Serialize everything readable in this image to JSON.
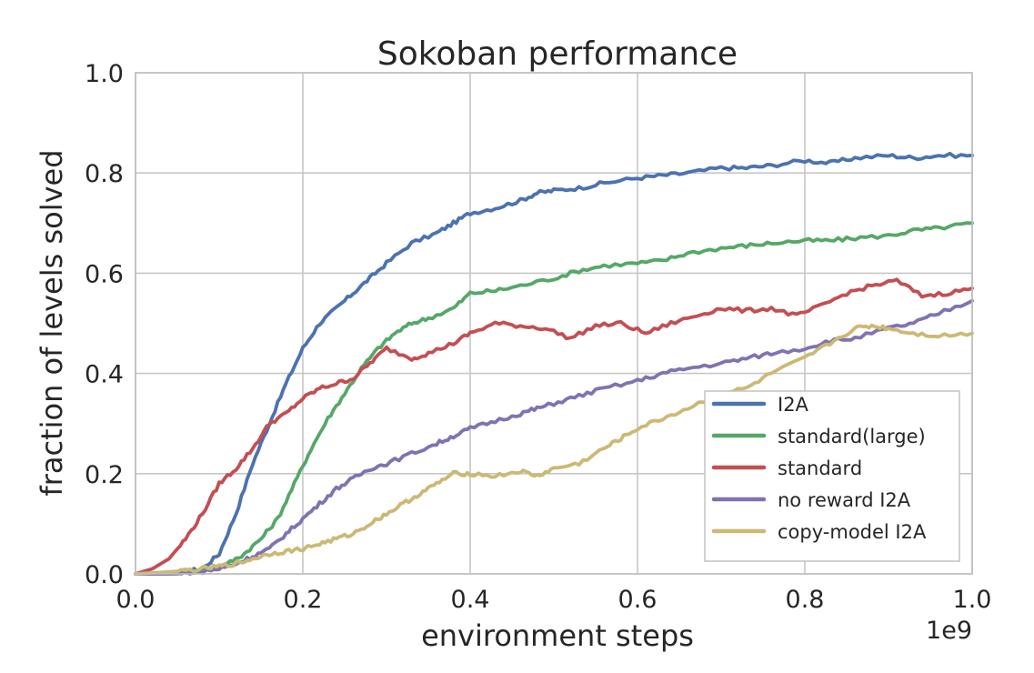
{
  "chart_data": {
    "type": "line",
    "title": "Sokoban performance",
    "xlabel": "environment steps",
    "ylabel": "fraction of levels solved",
    "x_offset_label": "1e9",
    "xlim": [
      0.0,
      1.0
    ],
    "ylim": [
      0.0,
      1.0
    ],
    "xticks": [
      "0.0",
      "0.2",
      "0.4",
      "0.6",
      "0.8",
      "1.0"
    ],
    "yticks": [
      "0.0",
      "0.2",
      "0.4",
      "0.6",
      "0.8",
      "1.0"
    ],
    "grid": true,
    "legend_position": "lower-right",
    "series": [
      {
        "name": "I2A",
        "color": "#4c72b0",
        "x": [
          0.0,
          0.03,
          0.06,
          0.08,
          0.1,
          0.12,
          0.14,
          0.16,
          0.18,
          0.2,
          0.22,
          0.24,
          0.26,
          0.28,
          0.3,
          0.33,
          0.36,
          0.38,
          0.4,
          0.43,
          0.46,
          0.48,
          0.5,
          0.53,
          0.56,
          0.6,
          0.63,
          0.66,
          0.7,
          0.73,
          0.76,
          0.8,
          0.83,
          0.86,
          0.9,
          0.93,
          0.96,
          1.0
        ],
        "y": [
          0.0,
          0.0,
          0.005,
          0.01,
          0.04,
          0.12,
          0.22,
          0.3,
          0.38,
          0.45,
          0.5,
          0.53,
          0.56,
          0.59,
          0.62,
          0.66,
          0.68,
          0.7,
          0.72,
          0.73,
          0.745,
          0.76,
          0.765,
          0.77,
          0.78,
          0.79,
          0.795,
          0.8,
          0.81,
          0.81,
          0.815,
          0.825,
          0.82,
          0.83,
          0.835,
          0.83,
          0.835,
          0.835
        ]
      },
      {
        "name": "standard(large)",
        "color": "#55a868",
        "x": [
          0.0,
          0.04,
          0.07,
          0.09,
          0.11,
          0.13,
          0.15,
          0.17,
          0.19,
          0.21,
          0.23,
          0.25,
          0.27,
          0.29,
          0.31,
          0.33,
          0.35,
          0.38,
          0.4,
          0.43,
          0.46,
          0.5,
          0.53,
          0.56,
          0.6,
          0.63,
          0.66,
          0.7,
          0.73,
          0.76,
          0.8,
          0.83,
          0.86,
          0.9,
          0.93,
          0.96,
          1.0
        ],
        "y": [
          0.0,
          0.0,
          0.005,
          0.01,
          0.02,
          0.04,
          0.07,
          0.11,
          0.18,
          0.25,
          0.31,
          0.36,
          0.41,
          0.45,
          0.48,
          0.5,
          0.51,
          0.53,
          0.56,
          0.565,
          0.575,
          0.59,
          0.605,
          0.615,
          0.62,
          0.625,
          0.64,
          0.65,
          0.655,
          0.66,
          0.665,
          0.665,
          0.67,
          0.675,
          0.685,
          0.69,
          0.7
        ]
      },
      {
        "name": "standard",
        "color": "#c44e52",
        "x": [
          0.0,
          0.02,
          0.04,
          0.06,
          0.08,
          0.1,
          0.12,
          0.14,
          0.16,
          0.18,
          0.2,
          0.22,
          0.24,
          0.26,
          0.28,
          0.3,
          0.33,
          0.35,
          0.38,
          0.4,
          0.43,
          0.46,
          0.49,
          0.52,
          0.55,
          0.58,
          0.61,
          0.64,
          0.67,
          0.7,
          0.73,
          0.76,
          0.79,
          0.82,
          0.85,
          0.88,
          0.91,
          0.94,
          0.97,
          1.0
        ],
        "y": [
          0.0,
          0.01,
          0.03,
          0.07,
          0.12,
          0.18,
          0.21,
          0.25,
          0.3,
          0.32,
          0.35,
          0.37,
          0.38,
          0.39,
          0.42,
          0.45,
          0.43,
          0.44,
          0.46,
          0.48,
          0.5,
          0.495,
          0.49,
          0.47,
          0.495,
          0.5,
          0.48,
          0.5,
          0.515,
          0.53,
          0.525,
          0.53,
          0.515,
          0.535,
          0.56,
          0.575,
          0.585,
          0.555,
          0.56,
          0.57
        ]
      },
      {
        "name": "no reward I2A",
        "color": "#8172b2",
        "x": [
          0.0,
          0.05,
          0.08,
          0.1,
          0.12,
          0.14,
          0.16,
          0.18,
          0.2,
          0.22,
          0.24,
          0.26,
          0.28,
          0.3,
          0.33,
          0.36,
          0.38,
          0.4,
          0.43,
          0.46,
          0.48,
          0.5,
          0.53,
          0.56,
          0.6,
          0.63,
          0.66,
          0.7,
          0.73,
          0.76,
          0.8,
          0.83,
          0.86,
          0.9,
          0.93,
          0.96,
          1.0
        ],
        "y": [
          0.0,
          0.0,
          0.005,
          0.01,
          0.02,
          0.035,
          0.05,
          0.08,
          0.11,
          0.14,
          0.17,
          0.19,
          0.21,
          0.22,
          0.24,
          0.26,
          0.275,
          0.29,
          0.305,
          0.32,
          0.33,
          0.34,
          0.355,
          0.37,
          0.385,
          0.4,
          0.41,
          0.42,
          0.43,
          0.44,
          0.45,
          0.465,
          0.47,
          0.49,
          0.5,
          0.52,
          0.545
        ]
      },
      {
        "name": "copy-model I2A",
        "color": "#ccb974",
        "x": [
          0.0,
          0.05,
          0.08,
          0.1,
          0.12,
          0.14,
          0.16,
          0.18,
          0.2,
          0.22,
          0.24,
          0.26,
          0.28,
          0.3,
          0.32,
          0.34,
          0.36,
          0.38,
          0.4,
          0.43,
          0.46,
          0.48,
          0.5,
          0.53,
          0.56,
          0.58,
          0.6,
          0.63,
          0.66,
          0.7,
          0.73,
          0.76,
          0.8,
          0.83,
          0.86,
          0.88,
          0.9,
          0.93,
          0.96,
          1.0
        ],
        "y": [
          0.0,
          0.005,
          0.01,
          0.015,
          0.02,
          0.03,
          0.04,
          0.045,
          0.05,
          0.06,
          0.07,
          0.08,
          0.1,
          0.12,
          0.14,
          0.16,
          0.18,
          0.2,
          0.2,
          0.195,
          0.205,
          0.195,
          0.21,
          0.22,
          0.25,
          0.27,
          0.29,
          0.31,
          0.33,
          0.36,
          0.37,
          0.4,
          0.43,
          0.46,
          0.49,
          0.495,
          0.49,
          0.48,
          0.475,
          0.48
        ]
      }
    ]
  }
}
